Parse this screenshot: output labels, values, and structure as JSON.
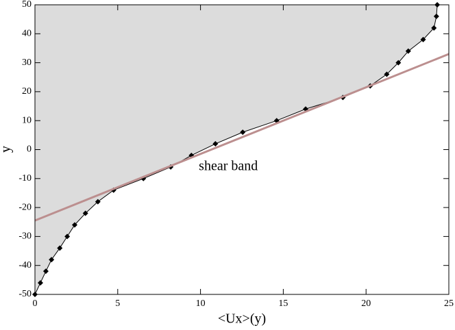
{
  "chart_data": {
    "type": "line",
    "xlabel": "<Ux>(y)",
    "ylabel": "y",
    "annotation": {
      "text": "shear band",
      "x": 9.9,
      "y": -6
    },
    "xlim": [
      0,
      25
    ],
    "ylim": [
      -50,
      50
    ],
    "xticks": [
      0,
      5,
      10,
      15,
      20,
      25
    ],
    "yticks": [
      -50,
      -40,
      -30,
      -20,
      -10,
      0,
      10,
      20,
      30,
      40,
      50
    ],
    "fill_color": "#dcdcdc",
    "series": [
      {
        "name": "profile",
        "color": "#000000",
        "marker": "diamond",
        "x": [
          0,
          0.33,
          0.66,
          1.0,
          1.5,
          1.95,
          2.4,
          3.05,
          3.8,
          4.75,
          6.55,
          8.2,
          9.45,
          10.9,
          12.55,
          14.6,
          16.35,
          18.6,
          20.25,
          21.25,
          21.95,
          22.55,
          23.45,
          24.1,
          24.25,
          24.3
        ],
        "values": [
          -50,
          -46,
          -42,
          -38,
          -34,
          -30,
          -26,
          -22,
          -18,
          -14,
          -10,
          -6,
          -2,
          2,
          6,
          10,
          14,
          18,
          22,
          26,
          30,
          34,
          38,
          42,
          46,
          50
        ]
      },
      {
        "name": "fit",
        "color": "#bc8f8f",
        "x": [
          0,
          25
        ],
        "values": [
          -24.5,
          33
        ]
      }
    ]
  }
}
